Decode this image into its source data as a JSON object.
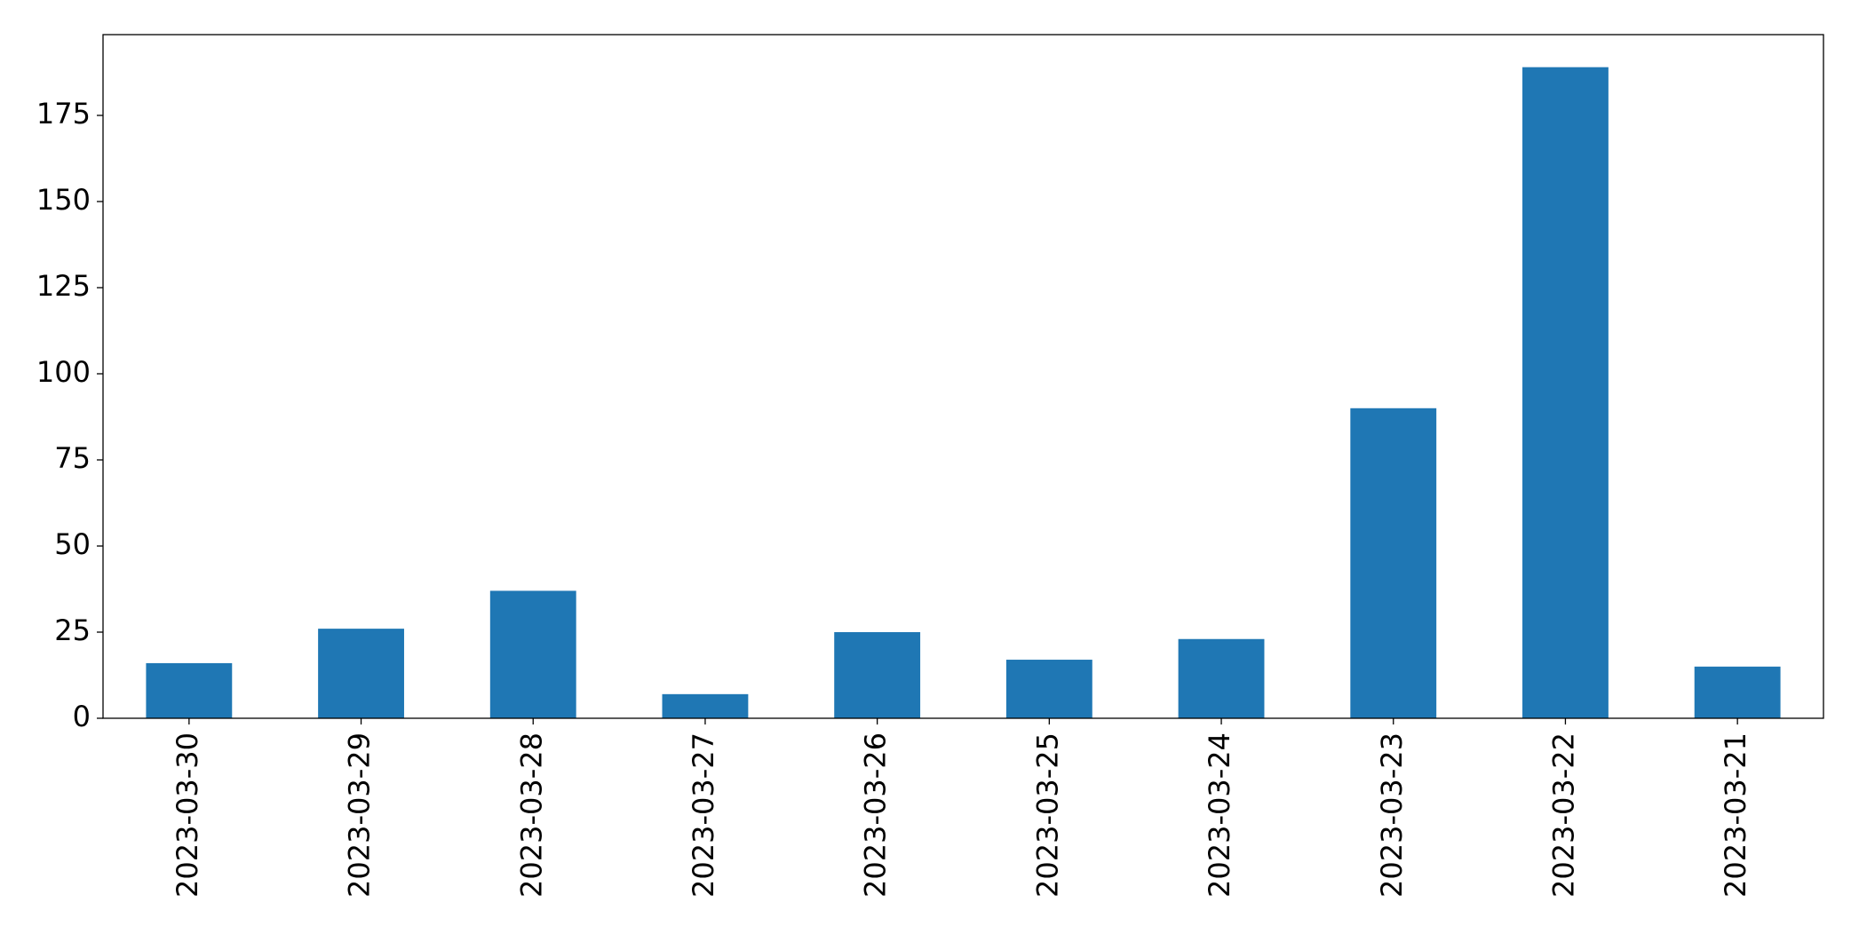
{
  "chart_data": {
    "type": "bar",
    "categories": [
      "2023-03-30",
      "2023-03-29",
      "2023-03-28",
      "2023-03-27",
      "2023-03-26",
      "2023-03-25",
      "2023-03-24",
      "2023-03-23",
      "2023-03-22",
      "2023-03-21"
    ],
    "values": [
      16,
      26,
      37,
      7,
      25,
      17,
      23,
      90,
      189,
      15
    ],
    "color": "#1f77b4",
    "ylim": [
      0,
      198.45
    ],
    "yticks": [
      0,
      25,
      50,
      75,
      100,
      125,
      150,
      175
    ],
    "grid": false
  }
}
